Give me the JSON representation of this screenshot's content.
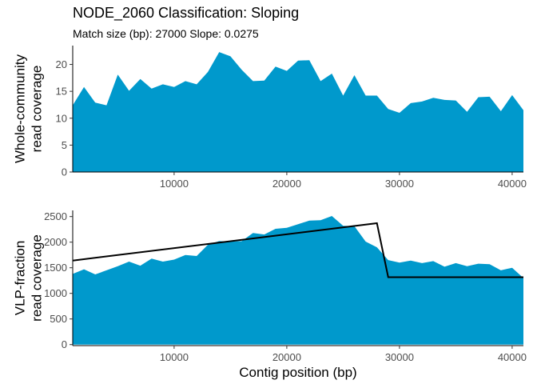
{
  "chart_data": {
    "title": "NODE_2060 Classification: Sloping",
    "subtitle": "Match size (bp): 27000 Slope: 0.0275",
    "xlabel": "Contig position (bp)",
    "xlim": [
      1000,
      41000
    ],
    "x_ticks": [
      10000,
      20000,
      30000,
      40000
    ],
    "x_tick_labels": [
      "10000",
      "20000",
      "30000",
      "40000"
    ],
    "fill_color": "#0099cc",
    "line_color": "#000000",
    "panels": [
      {
        "type": "area",
        "ylabel_lines": [
          "Whole-community",
          "read coverage"
        ],
        "ylim": [
          0,
          23.5
        ],
        "y_ticks": [
          0,
          5,
          10,
          15,
          20
        ],
        "y_tick_labels": [
          "0",
          "5",
          "10",
          "15",
          "20"
        ],
        "series": [
          {
            "x": [
              1000,
              2000,
              3000,
              4000,
              5000,
              6000,
              7000,
              8000,
              9000,
              10000,
              11000,
              12000,
              13000,
              14000,
              15000,
              16000,
              17000,
              18000,
              19000,
              20000,
              21000,
              22000,
              23000,
              24000,
              25000,
              26000,
              27000,
              28000,
              29000,
              30000,
              31000,
              32000,
              33000,
              34000,
              35000,
              36000,
              37000,
              38000,
              39000,
              40000,
              41000
            ],
            "values": [
              12.4,
              15.8,
              12.9,
              12.4,
              18.1,
              15.1,
              17.3,
              15.5,
              16.3,
              15.8,
              16.9,
              16.3,
              18.6,
              22.3,
              21.5,
              19.0,
              16.9,
              17.0,
              19.6,
              18.8,
              20.7,
              20.8,
              16.9,
              18.3,
              14.2,
              18.0,
              14.2,
              14.2,
              11.7,
              11.0,
              12.8,
              13.1,
              13.8,
              13.4,
              13.3,
              11.2,
              13.9,
              14.0,
              11.3,
              14.3,
              11.5
            ]
          }
        ]
      },
      {
        "type": "area",
        "ylabel_lines": [
          "VLP-fraction",
          "read coverage"
        ],
        "ylim": [
          -20,
          2620
        ],
        "y_ticks": [
          0,
          500,
          1000,
          1500,
          2000,
          2500
        ],
        "y_tick_labels": [
          "0",
          "500",
          "1000",
          "1500",
          "2000",
          "2500"
        ],
        "series": [
          {
            "x": [
              1000,
              2000,
              3000,
              4000,
              5000,
              6000,
              7000,
              8000,
              9000,
              10000,
              11000,
              12000,
              13000,
              14000,
              15000,
              16000,
              17000,
              18000,
              19000,
              20000,
              21000,
              22000,
              23000,
              24000,
              25000,
              26000,
              27000,
              28000,
              29000,
              30000,
              31000,
              32000,
              33000,
              34000,
              35000,
              36000,
              37000,
              38000,
              39000,
              40000,
              41000
            ],
            "values": [
              1380,
              1470,
              1370,
              1450,
              1530,
              1620,
              1540,
              1680,
              1620,
              1660,
              1750,
              1730,
              1950,
              2020,
              2010,
              2020,
              2180,
              2150,
              2260,
              2280,
              2350,
              2420,
              2430,
              2510,
              2320,
              2310,
              2010,
              1900,
              1650,
              1600,
              1640,
              1590,
              1630,
              1520,
              1590,
              1530,
              1580,
              1570,
              1450,
              1500,
              1300
            ]
          }
        ],
        "fit_line": {
          "x": [
            1000,
            28000,
            29000,
            41000
          ],
          "values": [
            1640,
            2370,
            1315,
            1315
          ]
        }
      }
    ]
  }
}
